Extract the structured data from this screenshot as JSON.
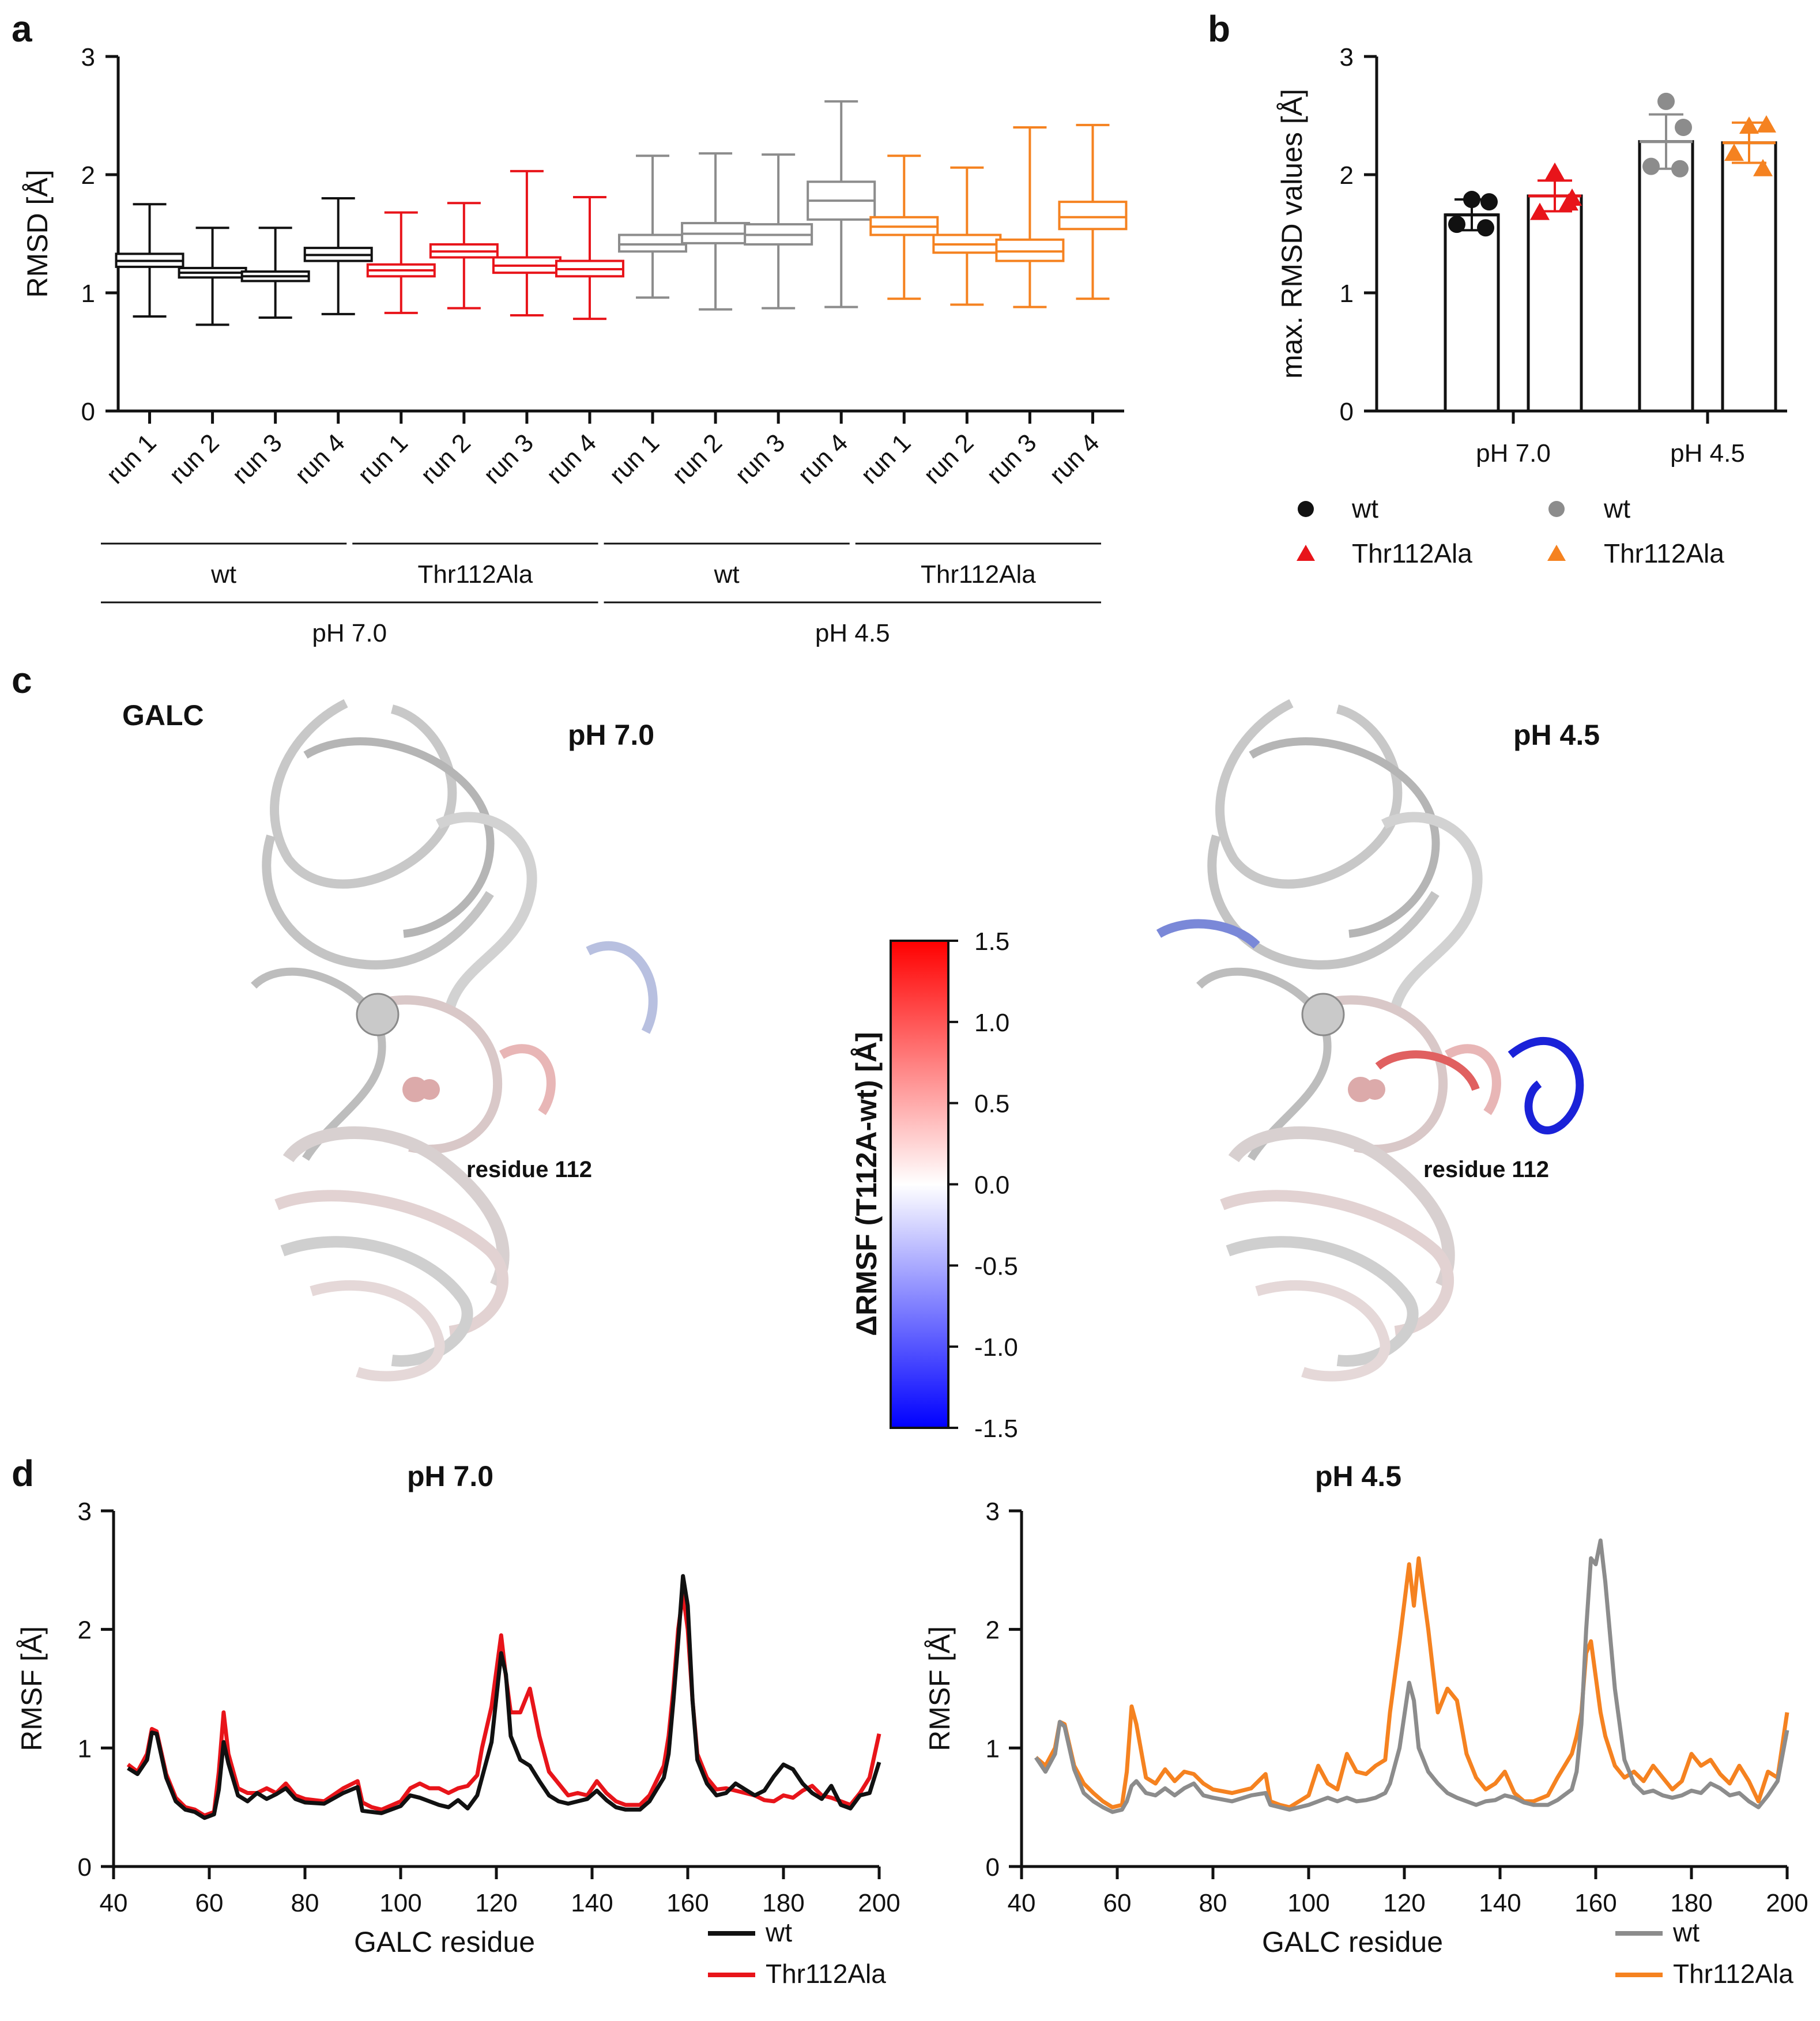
{
  "figure": {
    "panel_labels": {
      "a": "a",
      "b": "b",
      "c": "c",
      "d": "d"
    }
  },
  "chart_data": [
    {
      "id": "a",
      "type": "box",
      "ylabel": "RMSD [Å]",
      "ylim": [
        0,
        3
      ],
      "yticks": [
        "0",
        "1",
        "2",
        "3"
      ],
      "categories": [
        "run 1",
        "run 2",
        "run 3",
        "run 4",
        "run 1",
        "run 2",
        "run 3",
        "run 4",
        "run 1",
        "run 2",
        "run 3",
        "run 4",
        "run 1",
        "run 2",
        "run 3",
        "run 4"
      ],
      "colors": [
        "#111111",
        "#111111",
        "#111111",
        "#111111",
        "#e8141a",
        "#e8141a",
        "#e8141a",
        "#e8141a",
        "#8c8c8c",
        "#8c8c8c",
        "#8c8c8c",
        "#8c8c8c",
        "#f58220",
        "#f58220",
        "#f58220",
        "#f58220"
      ],
      "boxes": [
        {
          "min": 0.8,
          "q1": 1.22,
          "median": 1.27,
          "q3": 1.33,
          "max": 1.75
        },
        {
          "min": 0.73,
          "q1": 1.13,
          "median": 1.17,
          "q3": 1.21,
          "max": 1.55
        },
        {
          "min": 0.79,
          "q1": 1.1,
          "median": 1.14,
          "q3": 1.18,
          "max": 1.55
        },
        {
          "min": 0.82,
          "q1": 1.27,
          "median": 1.32,
          "q3": 1.38,
          "max": 1.8
        },
        {
          "min": 0.83,
          "q1": 1.14,
          "median": 1.19,
          "q3": 1.24,
          "max": 1.68
        },
        {
          "min": 0.87,
          "q1": 1.3,
          "median": 1.35,
          "q3": 1.41,
          "max": 1.76
        },
        {
          "min": 0.81,
          "q1": 1.17,
          "median": 1.23,
          "q3": 1.3,
          "max": 2.03
        },
        {
          "min": 0.78,
          "q1": 1.14,
          "median": 1.2,
          "q3": 1.27,
          "max": 1.81
        },
        {
          "min": 0.96,
          "q1": 1.35,
          "median": 1.41,
          "q3": 1.49,
          "max": 2.16
        },
        {
          "min": 0.86,
          "q1": 1.42,
          "median": 1.5,
          "q3": 1.59,
          "max": 2.18
        },
        {
          "min": 0.87,
          "q1": 1.41,
          "median": 1.49,
          "q3": 1.58,
          "max": 2.17
        },
        {
          "min": 0.88,
          "q1": 1.62,
          "median": 1.78,
          "q3": 1.94,
          "max": 2.62
        },
        {
          "min": 0.95,
          "q1": 1.49,
          "median": 1.56,
          "q3": 1.64,
          "max": 2.16
        },
        {
          "min": 0.9,
          "q1": 1.34,
          "median": 1.41,
          "q3": 1.49,
          "max": 2.06
        },
        {
          "min": 0.88,
          "q1": 1.27,
          "median": 1.35,
          "q3": 1.45,
          "max": 2.4
        },
        {
          "min": 0.95,
          "q1": 1.54,
          "median": 1.64,
          "q3": 1.77,
          "max": 2.42
        }
      ],
      "groups_level1": [
        "wt",
        "Thr112Ala",
        "wt",
        "Thr112Ala"
      ],
      "groups_level2": [
        "pH 7.0",
        "pH 4.5"
      ]
    },
    {
      "id": "b",
      "type": "bar",
      "ylabel": "max. RMSD values [Å]",
      "ylim": [
        0,
        3
      ],
      "yticks": [
        "0",
        "1",
        "2",
        "3"
      ],
      "categories": [
        "pH 7.0",
        "pH 4.5"
      ],
      "series": [
        {
          "name": "wt",
          "marker": "circle",
          "colors": [
            "#111111",
            "#8c8c8c"
          ],
          "values": [
            1.66,
            2.28
          ],
          "sd": [
            0.13,
            0.23
          ],
          "points": [
            [
              1.79,
              1.77,
              1.58,
              1.55
            ],
            [
              2.62,
              2.4,
              2.07,
              2.05
            ]
          ]
        },
        {
          "name": "Thr112Ala",
          "marker": "triangle",
          "colors": [
            "#e8141a",
            "#f58220"
          ],
          "values": [
            1.82,
            2.27
          ],
          "sd": [
            0.13,
            0.17
          ],
          "points": [
            [
              2.02,
              1.8,
              1.68,
              1.76
            ],
            [
              2.41,
              2.42,
              2.18,
              2.05
            ]
          ]
        }
      ],
      "legend": {
        "ph70": [
          {
            "label": "wt",
            "marker": "circle",
            "color": "#111111"
          },
          {
            "label": "Thr112Ala",
            "marker": "triangle",
            "color": "#e8141a"
          }
        ],
        "ph45": [
          {
            "label": "wt",
            "marker": "circle",
            "color": "#8c8c8c"
          },
          {
            "label": "Thr112Ala",
            "marker": "triangle",
            "color": "#f58220"
          }
        ]
      }
    },
    {
      "id": "d70",
      "type": "line",
      "title": "pH 7.0",
      "xlabel": "GALC residue",
      "ylabel": "RMSF [Å]",
      "xlim": [
        40,
        200
      ],
      "ylim": [
        0,
        3
      ],
      "xticks": [
        "40",
        "60",
        "80",
        "100",
        "120",
        "140",
        "160",
        "180",
        "200"
      ],
      "yticks": [
        "0",
        "1",
        "2",
        "3"
      ],
      "x": [
        43,
        45,
        47,
        48,
        49,
        51,
        53,
        55,
        57,
        59,
        61,
        62,
        63,
        64,
        66,
        68,
        70,
        72,
        74,
        76,
        78,
        80,
        84,
        88,
        91,
        92,
        94,
        96,
        100,
        102,
        104,
        106,
        108,
        110,
        112,
        114,
        116,
        117,
        119,
        121,
        122,
        123,
        125,
        127,
        129,
        131,
        133,
        135,
        137,
        139,
        141,
        143,
        145,
        147,
        150,
        152,
        155,
        156,
        157,
        158,
        159,
        160,
        161,
        162,
        164,
        166,
        168,
        170,
        172,
        174,
        176,
        178,
        180,
        182,
        184,
        186,
        188,
        190,
        192,
        194,
        196,
        198,
        200
      ],
      "series": [
        {
          "name": "wt",
          "color": "#111111",
          "values": [
            0.83,
            0.78,
            0.9,
            1.13,
            1.12,
            0.75,
            0.55,
            0.48,
            0.46,
            0.41,
            0.44,
            0.65,
            1.05,
            0.87,
            0.6,
            0.55,
            0.62,
            0.57,
            0.61,
            0.66,
            0.57,
            0.54,
            0.53,
            0.62,
            0.67,
            0.47,
            0.46,
            0.45,
            0.51,
            0.6,
            0.58,
            0.55,
            0.52,
            0.5,
            0.56,
            0.49,
            0.6,
            0.75,
            1.05,
            1.8,
            1.62,
            1.1,
            0.9,
            0.85,
            0.72,
            0.6,
            0.55,
            0.53,
            0.55,
            0.57,
            0.64,
            0.56,
            0.5,
            0.48,
            0.48,
            0.55,
            0.75,
            0.95,
            1.4,
            1.9,
            2.45,
            2.2,
            1.4,
            0.9,
            0.7,
            0.6,
            0.62,
            0.7,
            0.65,
            0.6,
            0.64,
            0.76,
            0.86,
            0.82,
            0.7,
            0.62,
            0.57,
            0.68,
            0.52,
            0.49,
            0.6,
            0.62,
            0.88
          ]
        },
        {
          "name": "Thr112Ala",
          "color": "#e8141a",
          "values": [
            0.86,
            0.8,
            0.95,
            1.16,
            1.14,
            0.78,
            0.58,
            0.5,
            0.48,
            0.43,
            0.46,
            0.8,
            1.3,
            0.95,
            0.66,
            0.62,
            0.62,
            0.66,
            0.62,
            0.7,
            0.6,
            0.57,
            0.55,
            0.66,
            0.72,
            0.54,
            0.5,
            0.48,
            0.55,
            0.66,
            0.7,
            0.66,
            0.66,
            0.62,
            0.66,
            0.68,
            0.77,
            1.0,
            1.35,
            1.95,
            1.6,
            1.3,
            1.3,
            1.5,
            1.1,
            0.8,
            0.7,
            0.6,
            0.62,
            0.6,
            0.72,
            0.62,
            0.55,
            0.52,
            0.52,
            0.6,
            0.85,
            1.1,
            1.5,
            2.0,
            2.3,
            2.0,
            1.4,
            0.95,
            0.75,
            0.65,
            0.66,
            0.64,
            0.62,
            0.6,
            0.56,
            0.55,
            0.6,
            0.58,
            0.64,
            0.68,
            0.6,
            0.58,
            0.55,
            0.52,
            0.62,
            0.75,
            1.12
          ]
        }
      ],
      "legend": [
        "wt",
        "Thr112Ala"
      ]
    },
    {
      "id": "d45",
      "type": "line",
      "title": "pH 4.5",
      "xlabel": "GALC residue",
      "ylabel": "RMSF [Å]",
      "xlim": [
        40,
        200
      ],
      "ylim": [
        0,
        3
      ],
      "xticks": [
        "40",
        "60",
        "80",
        "100",
        "120",
        "140",
        "160",
        "180",
        "200"
      ],
      "yticks": [
        "0",
        "1",
        "2",
        "3"
      ],
      "x": [
        43,
        45,
        47,
        48,
        49,
        51,
        53,
        55,
        57,
        59,
        61,
        62,
        63,
        64,
        66,
        68,
        70,
        72,
        74,
        76,
        78,
        80,
        84,
        88,
        91,
        92,
        94,
        96,
        100,
        102,
        104,
        106,
        108,
        110,
        112,
        114,
        116,
        117,
        119,
        121,
        122,
        123,
        125,
        127,
        129,
        131,
        133,
        135,
        137,
        139,
        141,
        143,
        145,
        147,
        150,
        152,
        155,
        156,
        157,
        158,
        159,
        160,
        161,
        162,
        164,
        166,
        168,
        170,
        172,
        174,
        176,
        178,
        180,
        182,
        184,
        186,
        188,
        190,
        192,
        194,
        196,
        198,
        200
      ],
      "series": [
        {
          "name": "wt",
          "color": "#8c8c8c",
          "values": [
            0.92,
            0.8,
            0.95,
            1.22,
            1.18,
            0.82,
            0.62,
            0.55,
            0.5,
            0.46,
            0.48,
            0.55,
            0.68,
            0.72,
            0.62,
            0.6,
            0.66,
            0.6,
            0.66,
            0.7,
            0.6,
            0.58,
            0.55,
            0.6,
            0.62,
            0.52,
            0.5,
            0.48,
            0.52,
            0.55,
            0.58,
            0.55,
            0.58,
            0.55,
            0.56,
            0.58,
            0.62,
            0.7,
            1.0,
            1.55,
            1.4,
            1.0,
            0.8,
            0.7,
            0.62,
            0.58,
            0.55,
            0.52,
            0.55,
            0.56,
            0.6,
            0.58,
            0.54,
            0.52,
            0.52,
            0.56,
            0.65,
            0.8,
            1.2,
            2.0,
            2.6,
            2.55,
            2.75,
            2.4,
            1.5,
            0.9,
            0.7,
            0.62,
            0.64,
            0.6,
            0.58,
            0.6,
            0.64,
            0.62,
            0.7,
            0.66,
            0.6,
            0.62,
            0.55,
            0.5,
            0.6,
            0.72,
            1.15
          ]
        },
        {
          "name": "Thr112Ala",
          "color": "#f58220",
          "values": [
            0.92,
            0.85,
            1.0,
            1.22,
            1.2,
            0.85,
            0.7,
            0.62,
            0.55,
            0.5,
            0.52,
            0.8,
            1.35,
            1.2,
            0.75,
            0.7,
            0.82,
            0.72,
            0.8,
            0.78,
            0.7,
            0.65,
            0.62,
            0.66,
            0.78,
            0.55,
            0.52,
            0.5,
            0.6,
            0.85,
            0.7,
            0.65,
            0.95,
            0.8,
            0.78,
            0.85,
            0.9,
            1.3,
            1.9,
            2.55,
            2.2,
            2.6,
            2.0,
            1.3,
            1.5,
            1.4,
            0.95,
            0.75,
            0.65,
            0.7,
            0.8,
            0.62,
            0.55,
            0.55,
            0.6,
            0.75,
            0.95,
            1.1,
            1.3,
            1.8,
            1.9,
            1.6,
            1.3,
            1.1,
            0.85,
            0.75,
            0.8,
            0.72,
            0.85,
            0.75,
            0.65,
            0.72,
            0.95,
            0.85,
            0.9,
            0.78,
            0.7,
            0.85,
            0.72,
            0.55,
            0.8,
            0.75,
            1.3
          ]
        }
      ],
      "legend": [
        "wt",
        "Thr112Ala"
      ]
    }
  ],
  "panel_c": {
    "protein_label": "GALC",
    "left_title": "pH 7.0",
    "right_title": "pH 4.5",
    "residue_label": "residue 112",
    "colorbar": {
      "label": "ΔRMSF (T112A-wt) [Å]",
      "ticks": [
        "1.5",
        "1.0",
        "0.5",
        "0.0",
        "-0.5",
        "-1.0",
        "-1.5"
      ],
      "colors": {
        "high": "#ff0000",
        "mid": "#ffffff",
        "low": "#0000ff"
      }
    }
  }
}
